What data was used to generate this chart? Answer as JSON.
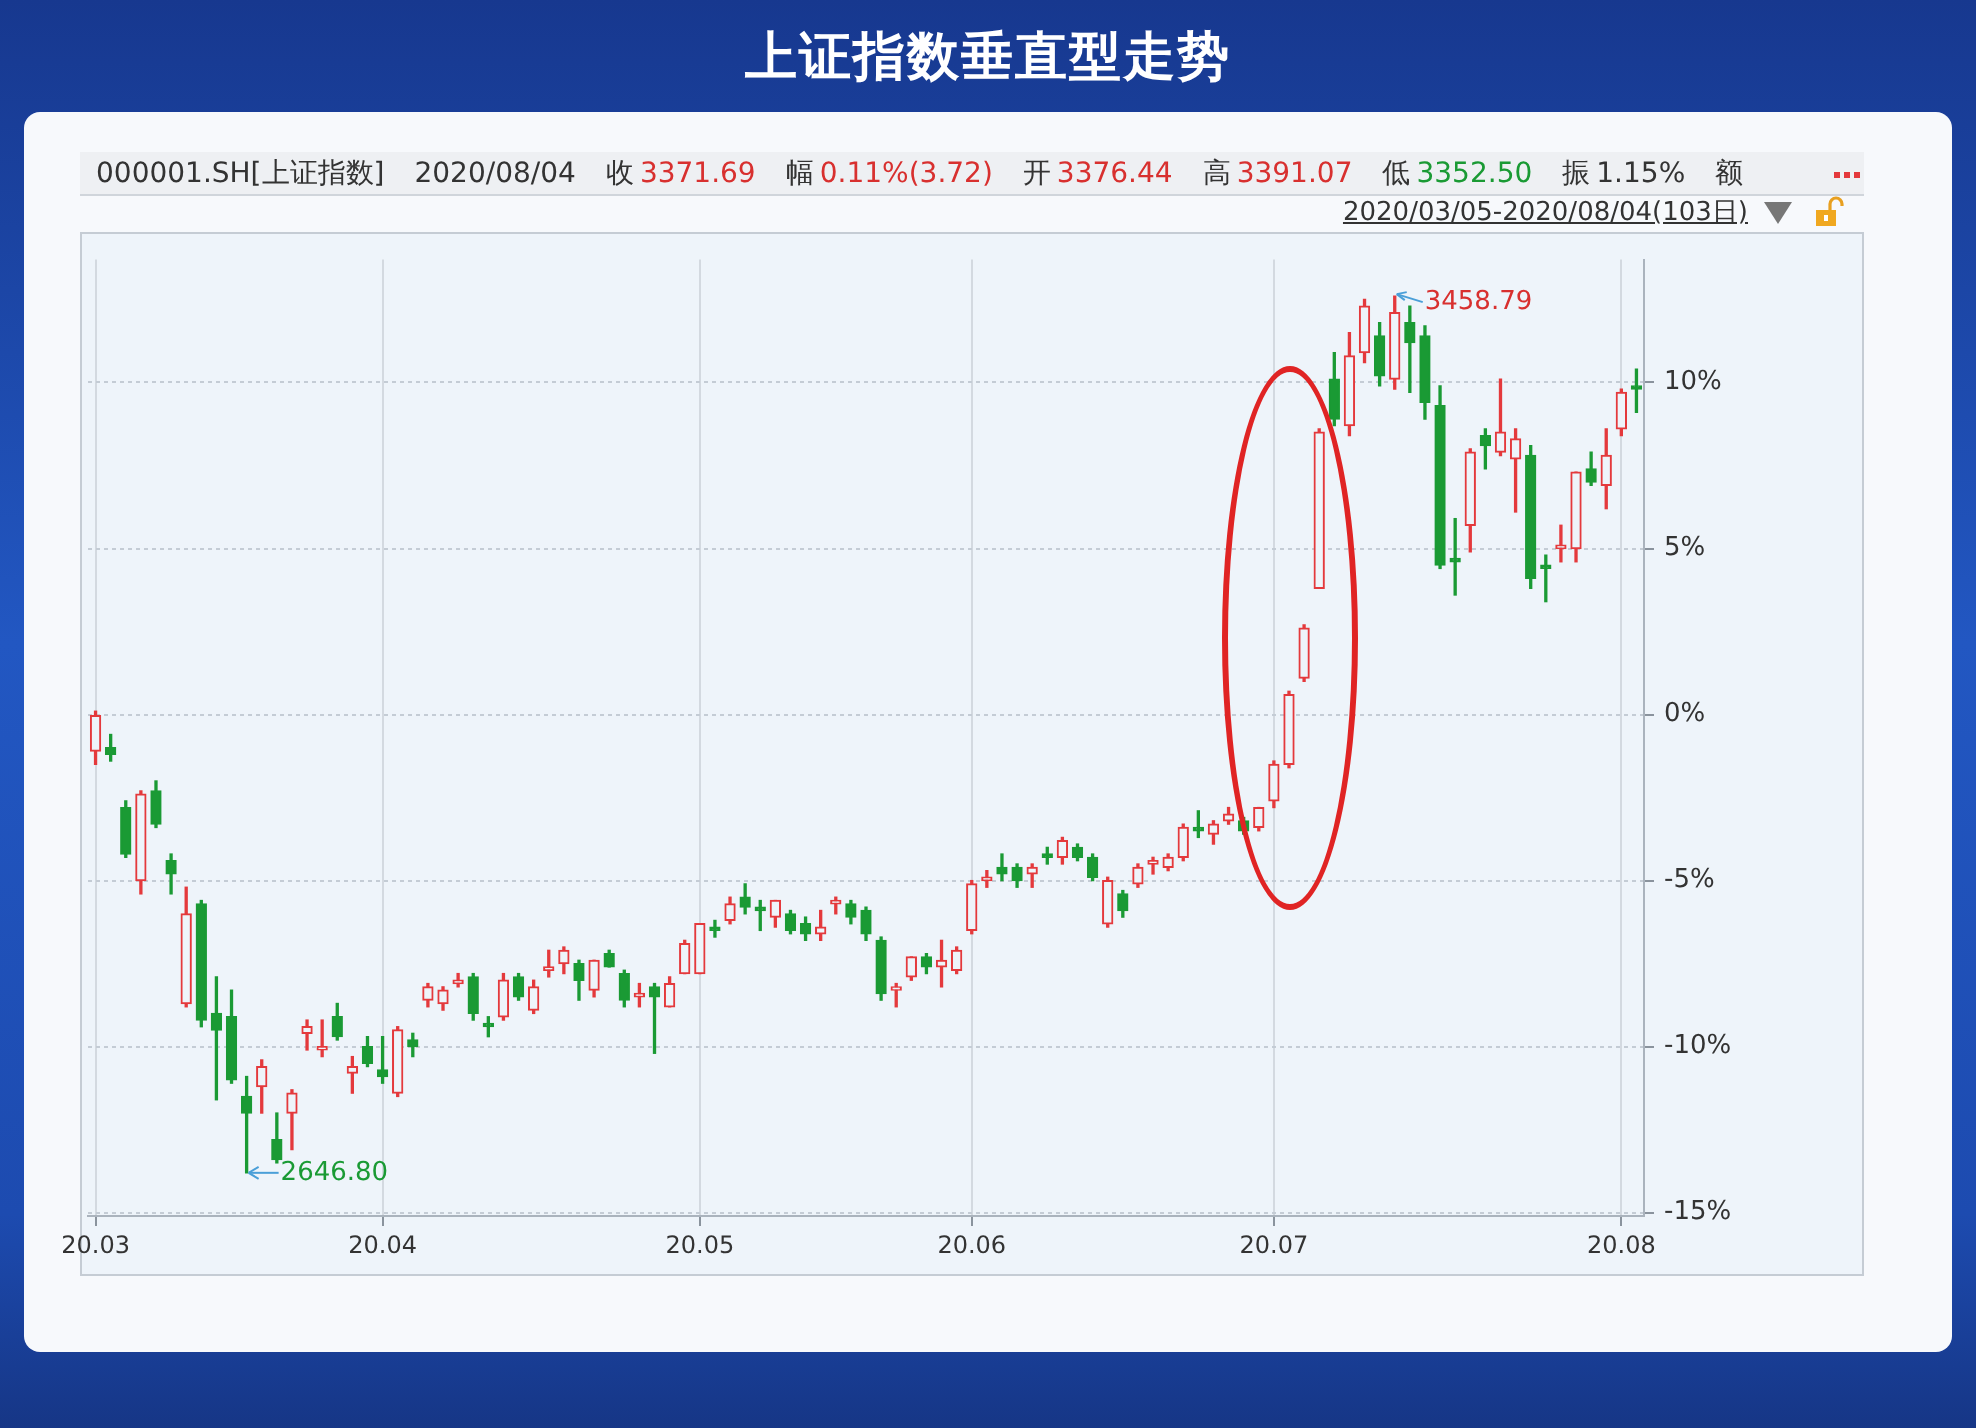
{
  "chart_data": {
    "type": "candlestick",
    "title": "上证指数垂直型走势",
    "categories": [
      "20.03",
      null,
      null,
      null,
      null,
      null,
      null,
      null,
      null,
      null,
      null,
      null,
      null,
      null,
      null,
      null,
      null,
      null,
      null,
      "20.04",
      null,
      null,
      null,
      null,
      null,
      null,
      null,
      null,
      null,
      null,
      null,
      null,
      null,
      null,
      null,
      null,
      null,
      null,
      null,
      null,
      "20.05",
      null,
      null,
      null,
      null,
      null,
      null,
      null,
      null,
      null,
      null,
      null,
      null,
      null,
      null,
      null,
      null,
      null,
      "20.06",
      null,
      null,
      null,
      null,
      null,
      null,
      null,
      null,
      null,
      null,
      null,
      null,
      null,
      null,
      null,
      null,
      null,
      null,
      null,
      "20.07",
      null,
      null,
      null,
      null,
      null,
      null,
      null,
      null,
      null,
      null,
      null,
      null,
      null,
      null,
      null,
      null,
      null,
      null,
      null,
      null,
      null,
      null,
      "20.08",
      null
    ],
    "ohlc": [
      [
        -1.1,
        0.1,
        -1.5,
        0.0
      ],
      [
        -1.0,
        -0.6,
        -1.4,
        -1.2
      ],
      [
        -2.8,
        -2.6,
        -4.3,
        -4.2
      ],
      [
        -5.0,
        -2.3,
        -5.4,
        -2.4
      ],
      [
        -2.3,
        -2.0,
        -3.4,
        -3.3
      ],
      [
        -4.4,
        -4.2,
        -5.4,
        -4.8
      ],
      [
        -8.7,
        -5.2,
        -8.8,
        -6.0
      ],
      [
        -5.7,
        -5.6,
        -9.4,
        -9.2
      ],
      [
        -9.0,
        -7.9,
        -11.6,
        -9.5
      ],
      [
        -9.1,
        -8.3,
        -11.1,
        -11.0
      ],
      [
        -11.5,
        -10.9,
        -13.8,
        -12.0
      ],
      [
        -11.2,
        -10.4,
        -12.0,
        -10.6
      ],
      [
        -12.8,
        -12.0,
        -13.5,
        -13.4
      ],
      [
        -12.0,
        -11.3,
        -13.1,
        -11.4
      ],
      [
        -9.6,
        -9.2,
        -10.1,
        -9.4
      ],
      [
        -10.1,
        -9.2,
        -10.3,
        -10.0
      ],
      [
        -9.1,
        -8.7,
        -9.8,
        -9.7
      ],
      [
        -10.8,
        -10.3,
        -11.4,
        -10.6
      ],
      [
        -10.0,
        -9.7,
        -10.6,
        -10.5
      ],
      [
        -10.7,
        -9.7,
        -11.1,
        -10.9
      ],
      [
        -11.4,
        -9.4,
        -11.5,
        -9.5
      ],
      [
        -9.8,
        -9.6,
        -10.3,
        -10.0
      ],
      [
        -8.6,
        -8.1,
        -8.8,
        -8.2
      ],
      [
        -8.7,
        -8.2,
        -8.9,
        -8.3
      ],
      [
        -8.1,
        -7.8,
        -8.2,
        -8.0
      ],
      [
        -7.9,
        -7.8,
        -9.2,
        -9.0
      ],
      [
        -9.3,
        -9.1,
        -9.7,
        -9.4
      ],
      [
        -9.1,
        -7.8,
        -9.2,
        -8.0
      ],
      [
        -7.9,
        -7.8,
        -8.6,
        -8.5
      ],
      [
        -8.9,
        -8.0,
        -9.0,
        -8.2
      ],
      [
        -7.7,
        -7.1,
        -7.9,
        -7.6
      ],
      [
        -7.5,
        -7.0,
        -7.8,
        -7.1
      ],
      [
        -7.5,
        -7.4,
        -8.6,
        -8.0
      ],
      [
        -8.3,
        -7.4,
        -8.5,
        -7.4
      ],
      [
        -7.2,
        -7.1,
        -7.6,
        -7.6
      ],
      [
        -7.8,
        -7.7,
        -8.8,
        -8.6
      ],
      [
        -8.5,
        -8.1,
        -8.8,
        -8.4
      ],
      [
        -8.2,
        -8.1,
        -10.2,
        -8.5
      ],
      [
        -8.8,
        -7.9,
        -8.8,
        -8.1
      ],
      [
        -7.8,
        -6.8,
        -7.8,
        -6.9
      ],
      [
        -7.8,
        -6.3,
        -7.8,
        -6.3
      ],
      [
        -6.4,
        -6.2,
        -6.7,
        -6.5
      ],
      [
        -6.2,
        -5.5,
        -6.3,
        -5.7
      ],
      [
        -5.5,
        -5.1,
        -6.0,
        -5.8
      ],
      [
        -5.8,
        -5.6,
        -6.5,
        -5.9
      ],
      [
        -6.1,
        -5.6,
        -6.4,
        -5.6
      ],
      [
        -6.0,
        -5.9,
        -6.6,
        -6.5
      ],
      [
        -6.3,
        -6.1,
        -6.8,
        -6.6
      ],
      [
        -6.6,
        -5.9,
        -6.8,
        -6.4
      ],
      [
        -5.7,
        -5.5,
        -6.0,
        -5.6
      ],
      [
        -5.7,
        -5.6,
        -6.3,
        -6.1
      ],
      [
        -5.9,
        -5.8,
        -6.8,
        -6.6
      ],
      [
        -6.8,
        -6.7,
        -8.6,
        -8.4
      ],
      [
        -8.3,
        -8.1,
        -8.8,
        -8.2
      ],
      [
        -7.9,
        -7.3,
        -8.0,
        -7.3
      ],
      [
        -7.3,
        -7.2,
        -7.8,
        -7.6
      ],
      [
        -7.6,
        -6.8,
        -8.2,
        -7.4
      ],
      [
        -7.7,
        -7.0,
        -7.8,
        -7.1
      ],
      [
        -6.5,
        -5.0,
        -6.6,
        -5.1
      ],
      [
        -5.0,
        -4.7,
        -5.2,
        -4.9
      ],
      [
        -4.6,
        -4.2,
        -5.0,
        -4.8
      ],
      [
        -4.6,
        -4.5,
        -5.2,
        -5.0
      ],
      [
        -4.8,
        -4.5,
        -5.2,
        -4.6
      ],
      [
        -4.2,
        -4.0,
        -4.5,
        -4.3
      ],
      [
        -4.3,
        -3.7,
        -4.5,
        -3.8
      ],
      [
        -4.0,
        -3.9,
        -4.4,
        -4.3
      ],
      [
        -4.3,
        -4.2,
        -5.0,
        -4.9
      ],
      [
        -6.3,
        -4.9,
        -6.4,
        -5.0
      ],
      [
        -5.4,
        -5.3,
        -6.1,
        -5.9
      ],
      [
        -5.1,
        -4.5,
        -5.2,
        -4.6
      ],
      [
        -4.5,
        -4.3,
        -4.8,
        -4.4
      ],
      [
        -4.6,
        -4.2,
        -4.7,
        -4.3
      ],
      [
        -4.3,
        -3.3,
        -4.4,
        -3.4
      ],
      [
        -3.4,
        -2.9,
        -3.7,
        -3.5
      ],
      [
        -3.6,
        -3.2,
        -3.9,
        -3.3
      ],
      [
        -3.2,
        -2.8,
        -3.3,
        -3.0
      ],
      [
        -3.2,
        -3.1,
        -3.6,
        -3.5
      ],
      [
        -3.4,
        -2.8,
        -3.5,
        -2.8
      ],
      [
        -2.6,
        -1.4,
        -2.8,
        -1.5
      ],
      [
        -1.5,
        0.7,
        -1.6,
        0.6
      ],
      [
        1.1,
        2.7,
        1.0,
        2.6
      ],
      [
        3.8,
        8.6,
        3.8,
        8.5
      ],
      [
        10.1,
        10.9,
        8.7,
        8.9
      ],
      [
        8.7,
        11.5,
        8.4,
        10.8
      ],
      [
        10.9,
        12.5,
        10.6,
        12.3
      ],
      [
        11.4,
        11.8,
        9.9,
        10.2
      ],
      [
        10.1,
        12.6,
        9.8,
        12.1
      ],
      [
        11.8,
        12.3,
        9.7,
        11.2
      ],
      [
        11.4,
        11.7,
        8.9,
        9.4
      ],
      [
        9.3,
        9.9,
        4.4,
        4.5
      ],
      [
        4.7,
        5.9,
        3.6,
        4.6
      ],
      [
        5.7,
        8.0,
        4.9,
        7.9
      ],
      [
        8.4,
        8.6,
        7.4,
        8.1
      ],
      [
        7.9,
        10.1,
        7.8,
        8.5
      ],
      [
        7.7,
        8.6,
        6.1,
        8.3
      ],
      [
        7.8,
        8.1,
        3.8,
        4.1
      ],
      [
        4.5,
        4.8,
        3.4,
        4.4
      ],
      [
        5.0,
        5.7,
        4.6,
        5.1
      ],
      [
        5.0,
        7.3,
        4.6,
        7.3
      ],
      [
        7.4,
        7.9,
        6.9,
        7.0
      ],
      [
        6.9,
        8.6,
        6.2,
        7.8
      ],
      [
        8.6,
        9.8,
        8.4,
        9.7
      ],
      [
        9.9,
        10.4,
        9.1,
        9.8
      ]
    ],
    "colors": [
      "#e4393c",
      "#1a9a34",
      "#1a9a34",
      "#e4393c",
      "#1a9a34",
      "#1a9a34",
      "#e4393c",
      "#1a9a34",
      "#1a9a34",
      "#1a9a34",
      "#1a9a34",
      "#e4393c",
      "#1a9a34",
      "#e4393c",
      "#e4393c",
      "#e4393c",
      "#1a9a34",
      "#e4393c",
      "#1a9a34",
      "#1a9a34",
      "#e4393c",
      "#1a9a34",
      "#e4393c",
      "#e4393c",
      "#e4393c",
      "#1a9a34",
      "#1a9a34",
      "#e4393c",
      "#1a9a34",
      "#e4393c",
      "#e4393c",
      "#e4393c",
      "#1a9a34",
      "#e4393c",
      "#1a9a34",
      "#1a9a34",
      "#e4393c",
      "#1a9a34",
      "#e4393c",
      "#e4393c",
      "#e4393c",
      "#1a9a34",
      "#e4393c",
      "#1a9a34",
      "#1a9a34",
      "#e4393c",
      "#1a9a34",
      "#1a9a34",
      "#e4393c",
      "#e4393c",
      "#1a9a34",
      "#1a9a34",
      "#1a9a34",
      "#e4393c",
      "#e4393c",
      "#1a9a34",
      "#e4393c",
      "#e4393c",
      "#e4393c",
      "#e4393c",
      "#1a9a34",
      "#1a9a34",
      "#e4393c",
      "#1a9a34",
      "#e4393c",
      "#1a9a34",
      "#1a9a34",
      "#e4393c",
      "#1a9a34",
      "#e4393c",
      "#e4393c",
      "#e4393c",
      "#e4393c",
      "#1a9a34",
      "#e4393c",
      "#e4393c",
      "#1a9a34",
      "#e4393c",
      "#e4393c",
      "#e4393c",
      "#e4393c",
      "#e4393c",
      "#1a9a34",
      "#e4393c",
      "#e4393c",
      "#1a9a34",
      "#e4393c",
      "#1a9a34",
      "#1a9a34",
      "#1a9a34",
      "#1a9a34",
      "#e4393c",
      "#1a9a34",
      "#e4393c",
      "#e4393c",
      "#1a9a34",
      "#1a9a34",
      "#e4393c",
      "#e4393c",
      "#1a9a34",
      "#e4393c",
      "#e4393c",
      "#1a9a34"
    ],
    "ylim": [
      -15.1,
      13.7
    ],
    "yticks": [
      {
        "value": -15,
        "label": "-15%"
      },
      {
        "value": -10,
        "label": "-10%"
      },
      {
        "value": -5,
        "label": "-5%"
      },
      {
        "value": 0,
        "label": "0%"
      },
      {
        "value": 5,
        "label": "5%"
      },
      {
        "value": 10,
        "label": "10%"
      }
    ],
    "grid": true,
    "annotations": [
      "000001.SH[上证指数]",
      "2020/08/04",
      "收 3371.69",
      "幅 0.11%(3.72)",
      "开 3376.44",
      "高 3391.07",
      "低 3352.50",
      "振 1.15%",
      "额",
      "2020/03/05-2020/08/04(103日)",
      "2646.80",
      "3458.79"
    ]
  }
}
